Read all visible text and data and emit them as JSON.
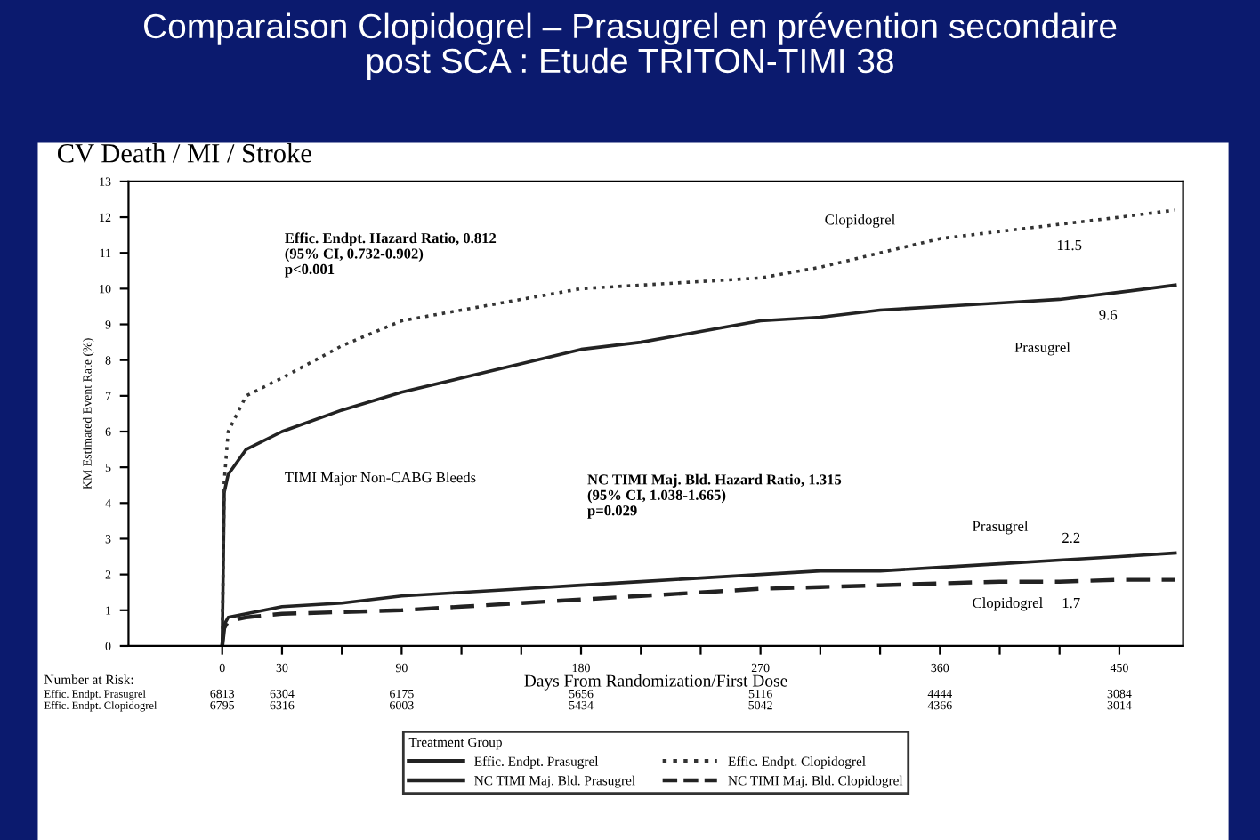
{
  "chart_data": {
    "type": "line",
    "title": "Comparaison Clopidogrel – Prasugrel en prévention secondaire\npost SCA : Etude TRITON-TIMI 38",
    "subtitle": "CV Death / MI / Stroke",
    "xlabel": "Days From Randomization/First Dose",
    "ylabel": "KM Estimated Event Rate (%)",
    "legend_title": "Treatment Group",
    "legend": "bottom",
    "grid": false,
    "xlim": [
      -47,
      482
    ],
    "ylim": [
      0,
      13
    ],
    "xticks": [
      0,
      30,
      {
        "value": 60,
        "label": null
      },
      90,
      {
        "value": 120,
        "label": null
      },
      {
        "value": 150,
        "label": null
      },
      180,
      {
        "value": 210,
        "label": null
      },
      {
        "value": 240,
        "label": null
      },
      270,
      {
        "value": 300,
        "label": null
      },
      {
        "value": 330,
        "label": null
      },
      360,
      {
        "value": 390,
        "label": null
      },
      {
        "value": 420,
        "label": null
      },
      450
    ],
    "yticks": [
      0,
      1,
      2,
      3,
      4,
      5,
      6,
      7,
      8,
      9,
      10,
      11,
      12,
      13
    ],
    "x": [
      0,
      1,
      3,
      12,
      30,
      60,
      90,
      120,
      150,
      180,
      210,
      240,
      270,
      300,
      330,
      360,
      390,
      420,
      450,
      478
    ],
    "series": [
      {
        "name": "Effic. Endpt. Prasugrel",
        "color": "#222222",
        "line_style": "solid",
        "values": [
          0,
          4.3,
          4.8,
          5.5,
          6.0,
          6.6,
          7.1,
          7.5,
          7.9,
          8.3,
          8.5,
          8.8,
          9.1,
          9.2,
          9.4,
          9.5,
          9.6,
          9.7,
          9.9,
          10.1
        ]
      },
      {
        "name": "NC TIMI Maj. Bld. Prasugrel",
        "color": "#222222",
        "line_style": "solid",
        "values": [
          0,
          0.6,
          0.8,
          0.9,
          1.1,
          1.2,
          1.4,
          1.5,
          1.6,
          1.7,
          1.8,
          1.9,
          2.0,
          2.1,
          2.1,
          2.2,
          2.3,
          2.4,
          2.5,
          2.6
        ]
      },
      {
        "name": "Effic. Endpt. Clopidogrel",
        "color": "#333333",
        "line_style": "dotted",
        "values": [
          0,
          4.6,
          6.0,
          7.0,
          7.5,
          8.4,
          9.1,
          9.4,
          9.7,
          10.0,
          10.1,
          10.2,
          10.3,
          10.6,
          11.0,
          11.4,
          11.6,
          11.8,
          12.0,
          12.2
        ]
      },
      {
        "name": "NC TIMI Maj. Bld. Clopidogrel",
        "color": "#222222",
        "line_style": "dashed",
        "values": [
          0,
          0.5,
          0.7,
          0.8,
          0.9,
          0.95,
          1.0,
          1.1,
          1.2,
          1.3,
          1.4,
          1.5,
          1.6,
          1.65,
          1.7,
          1.75,
          1.8,
          1.8,
          1.85,
          1.85
        ]
      }
    ],
    "annotations": [
      "Effic. Endpt. Hazard Ratio, 0.812\n(95% CI, 0.732-0.902)\np<0.001",
      "TIMI Major Non-CABG Bleeds",
      "NC TIMI Maj. Bld. Hazard Ratio, 1.315\n(95% CI, 1.038-1.665)\np=0.029",
      "Clopidogrel",
      "11.5",
      "9.6",
      "Prasugrel",
      "Prasugrel",
      "2.2",
      "Clopidogrel",
      "1.7",
      "Number at Risk:",
      "Effic. Endpt. Prasugrel",
      "Effic. Endpt. Clopidogrel",
      "6813 6304 6175 5656 5116 4444 3084",
      "6795 6316 6003 5434 5042 4366 3014"
    ]
  }
}
